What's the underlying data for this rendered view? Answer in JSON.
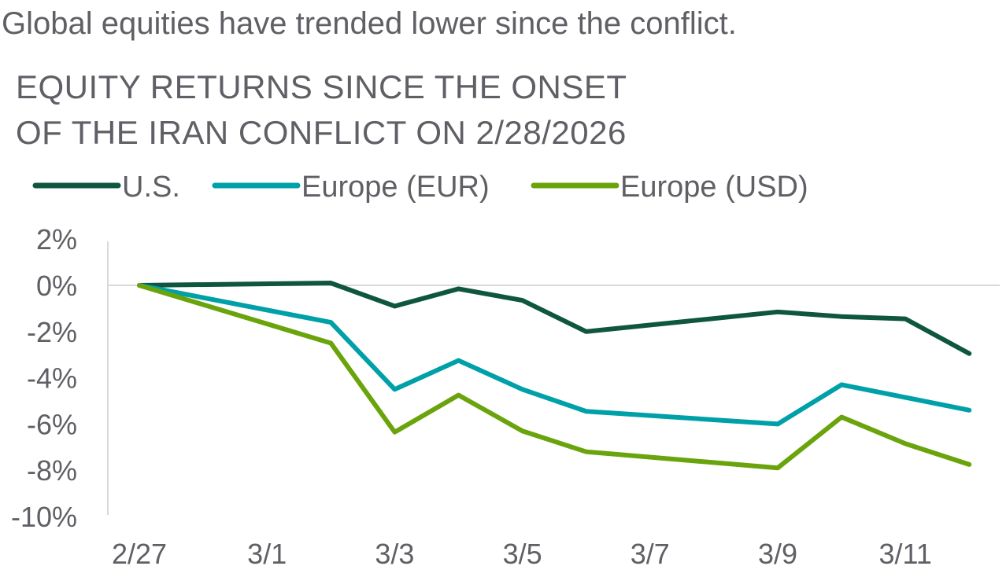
{
  "headline": "Global equities have trended lower since the conflict.",
  "chart_data": {
    "type": "line",
    "title": "EQUITY RETURNS SINCE THE ONSET\nOF THE IRAN CONFLICT ON 2/28/2026",
    "xlabel": "",
    "ylabel": "",
    "x": [
      "2/27",
      "3/2",
      "3/3",
      "3/4",
      "3/5",
      "3/6",
      "3/9",
      "3/10",
      "3/11",
      "3/12"
    ],
    "x_day_offsets": [
      0,
      3,
      4,
      5,
      6,
      7,
      10,
      11,
      12,
      13
    ],
    "x_tick_labels": [
      "2/27",
      "3/1",
      "3/3",
      "3/5",
      "3/7",
      "3/9",
      "3/11"
    ],
    "y_tick_labels": [
      "2%",
      "0%",
      "-2%",
      "-4%",
      "-6%",
      "-8%",
      "-10%"
    ],
    "y_ticks": [
      2,
      0,
      -2,
      -4,
      -6,
      -8,
      -10
    ],
    "ylim": [
      -10,
      2
    ],
    "grid": false,
    "zero_line": true,
    "legend_position": "top",
    "series": [
      {
        "name": "U.S.",
        "color": "#0f5640",
        "values": [
          0,
          0.1,
          -0.9,
          -0.15,
          -0.65,
          -2.0,
          -1.15,
          -1.35,
          -1.45,
          -2.95
        ]
      },
      {
        "name": "Europe (EUR)",
        "color": "#00a0a8",
        "values": [
          0,
          -1.6,
          -4.5,
          -3.25,
          -4.5,
          -5.45,
          -6.0,
          -4.3,
          -4.85,
          -5.4
        ]
      },
      {
        "name": "Europe (USD)",
        "color": "#6aa40c",
        "values": [
          0,
          -2.5,
          -6.35,
          -4.75,
          -6.3,
          -7.2,
          -7.9,
          -5.7,
          -6.85,
          -7.75
        ]
      }
    ]
  }
}
